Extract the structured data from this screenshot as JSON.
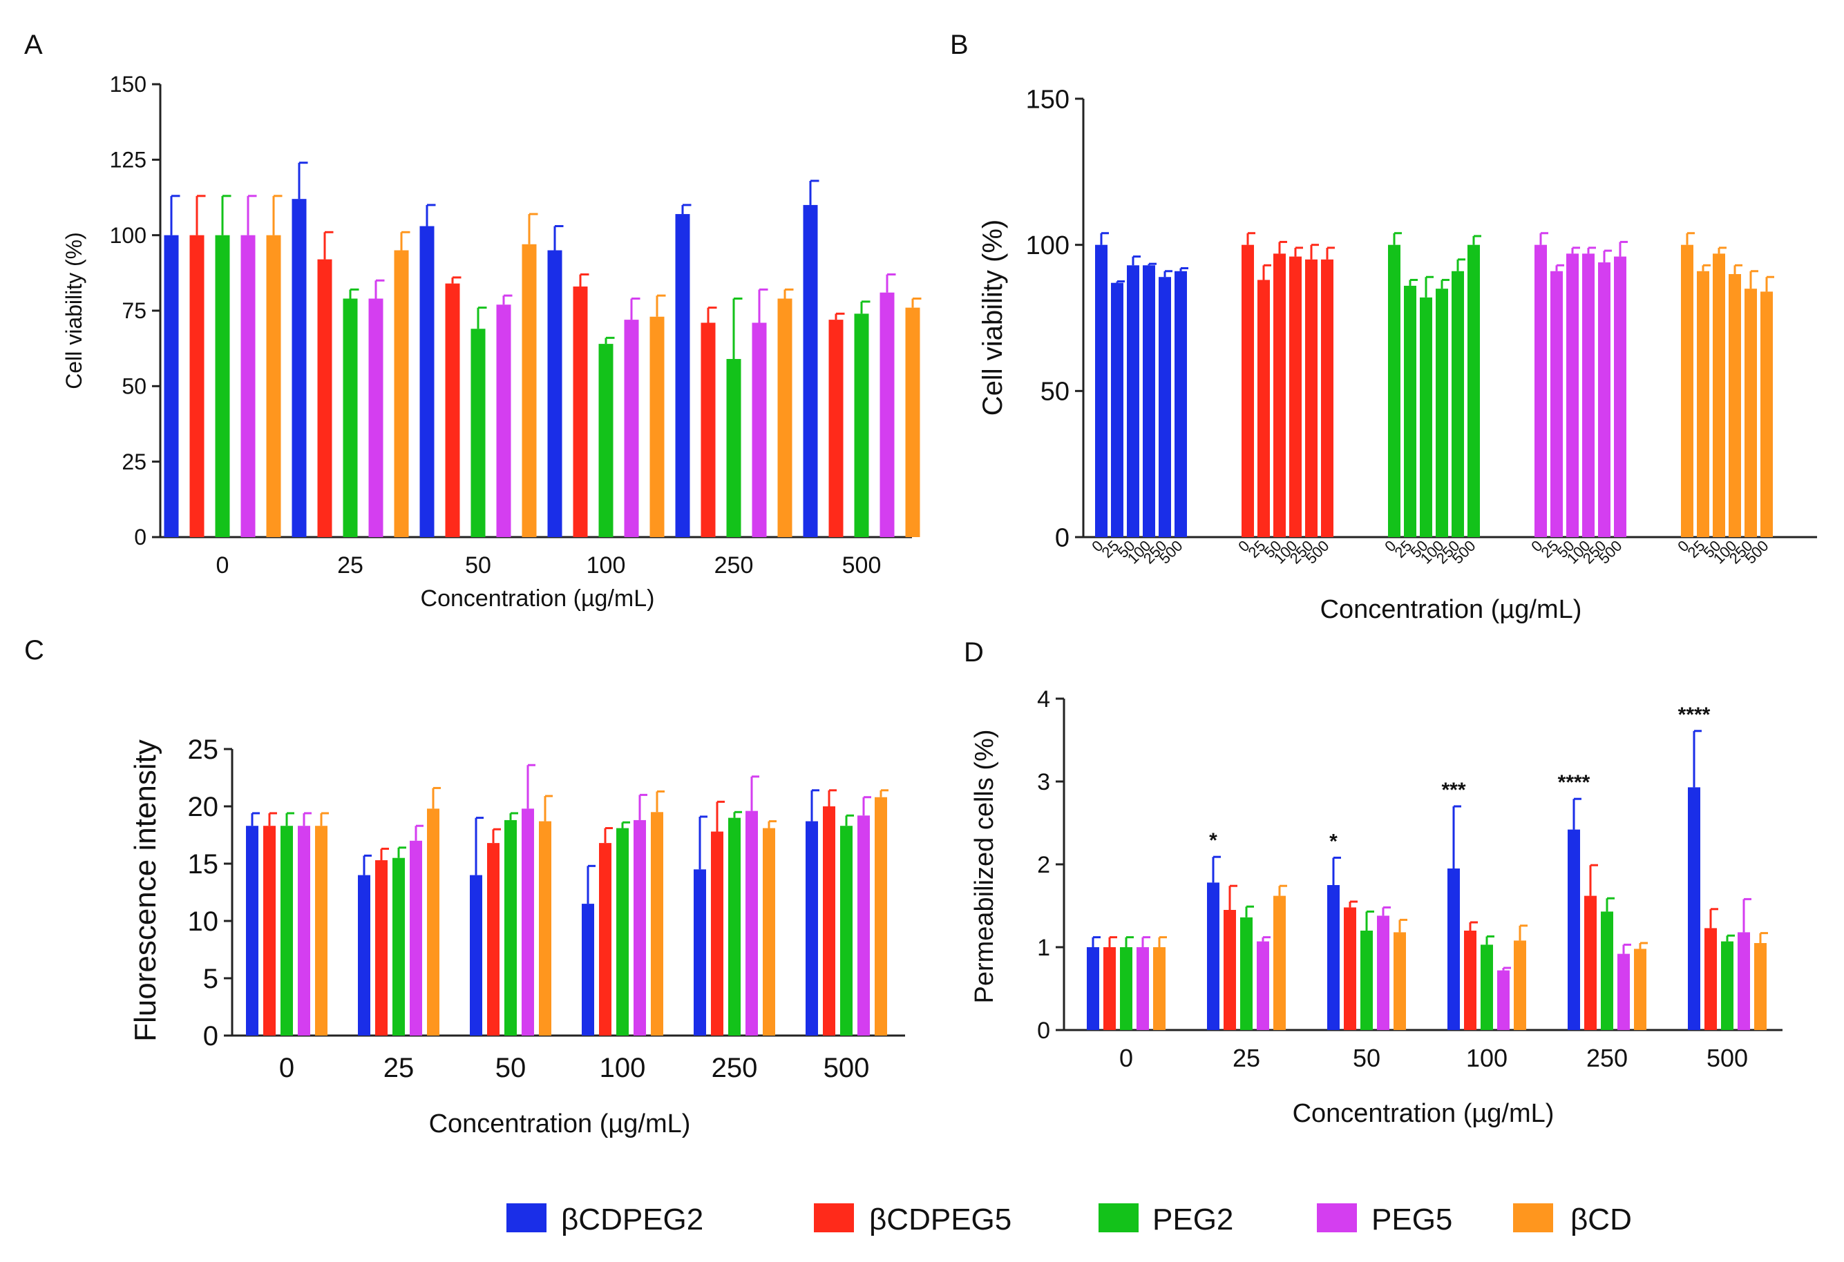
{
  "series_names": [
    "βCDPEG2",
    "βCDPEG5",
    "PEG2",
    "PEG5",
    "βCD"
  ],
  "colors": [
    "#1a2ee8",
    "#ff2a1a",
    "#13c21a",
    "#d43ef0",
    "#ff961e"
  ],
  "chart_data": [
    {
      "panel": "A",
      "type": "bar",
      "title": "",
      "xlabel": "Concentration (µg/mL)",
      "ylabel": "Cell viability (%)",
      "ylim": [
        0,
        150
      ],
      "yticks": [
        0,
        25,
        50,
        75,
        100,
        125,
        150
      ],
      "categories": [
        "0",
        "25",
        "50",
        "100",
        "250",
        "500"
      ],
      "series": [
        {
          "name": "βCDPEG2",
          "values": [
            100,
            112,
            103,
            95,
            107,
            110
          ],
          "errors": [
            13,
            12,
            7,
            8,
            3,
            8
          ]
        },
        {
          "name": "βCDPEG5",
          "values": [
            100,
            92,
            84,
            83,
            71,
            72
          ],
          "errors": [
            13,
            9,
            2,
            4,
            5,
            2
          ]
        },
        {
          "name": "PEG2",
          "values": [
            100,
            79,
            69,
            64,
            59,
            74
          ],
          "errors": [
            13,
            3,
            7,
            2,
            20,
            4
          ]
        },
        {
          "name": "PEG5",
          "values": [
            100,
            79,
            77,
            72,
            71,
            81
          ],
          "errors": [
            13,
            6,
            3,
            7,
            11,
            6
          ]
        },
        {
          "name": "βCD",
          "values": [
            100,
            95,
            97,
            73,
            79,
            76
          ],
          "errors": [
            13,
            6,
            10,
            7,
            3,
            3
          ]
        }
      ]
    },
    {
      "panel": "B",
      "type": "bar",
      "title": "",
      "xlabel": "Concentration  (µg/mL)",
      "ylabel": "Cell viability (%)",
      "ylim": [
        0,
        150
      ],
      "yticks": [
        0,
        50,
        100,
        150
      ],
      "categories": [
        "0",
        "25",
        "50",
        "100",
        "250",
        "500"
      ],
      "series": [
        {
          "name": "βCDPEG2",
          "values": [
            100,
            87,
            93,
            93,
            89,
            91
          ],
          "errors": [
            4,
            0.5,
            3,
            0.5,
            2,
            1
          ]
        },
        {
          "name": "βCDPEG5",
          "values": [
            100,
            88,
            97,
            96,
            95,
            95
          ],
          "errors": [
            4,
            5,
            4,
            3,
            5,
            4
          ]
        },
        {
          "name": "PEG2",
          "values": [
            100,
            86,
            82,
            85,
            91,
            100
          ],
          "errors": [
            4,
            2,
            7,
            3,
            4,
            3
          ]
        },
        {
          "name": "PEG5",
          "values": [
            100,
            91,
            97,
            97,
            94,
            96
          ],
          "errors": [
            4,
            2,
            2,
            2,
            4,
            5
          ]
        },
        {
          "name": "βCD",
          "values": [
            100,
            91,
            97,
            90,
            85,
            84
          ],
          "errors": [
            4,
            2,
            2,
            3,
            6,
            5
          ]
        }
      ]
    },
    {
      "panel": "C",
      "type": "bar",
      "title": "",
      "xlabel": "Concentration  (µg/mL)",
      "ylabel": "Fluorescence intensity",
      "ylim": [
        0,
        25
      ],
      "yticks": [
        0,
        5,
        10,
        15,
        20,
        25
      ],
      "categories": [
        "0",
        "25",
        "50",
        "100",
        "250",
        "500"
      ],
      "series": [
        {
          "name": "βCDPEG2",
          "values": [
            18.3,
            14.0,
            14.0,
            11.5,
            14.5,
            18.7
          ],
          "errors": [
            1.1,
            1.7,
            5.0,
            3.3,
            4.6,
            2.7
          ]
        },
        {
          "name": "βCDPEG5",
          "values": [
            18.3,
            15.3,
            16.8,
            16.8,
            17.8,
            20.0
          ],
          "errors": [
            1.1,
            1.0,
            1.2,
            1.3,
            2.6,
            1.4
          ]
        },
        {
          "name": "PEG2",
          "values": [
            18.3,
            15.5,
            18.8,
            18.1,
            19.0,
            18.3
          ],
          "errors": [
            1.1,
            0.9,
            0.6,
            0.5,
            0.5,
            0.9
          ]
        },
        {
          "name": "PEG5",
          "values": [
            18.3,
            17.0,
            19.8,
            18.8,
            19.6,
            19.2
          ],
          "errors": [
            1.1,
            1.3,
            3.8,
            2.2,
            3.0,
            1.6
          ]
        },
        {
          "name": "βCD",
          "values": [
            18.3,
            19.8,
            18.7,
            19.5,
            18.1,
            20.8
          ],
          "errors": [
            1.1,
            1.8,
            2.2,
            1.8,
            0.6,
            0.6
          ]
        }
      ]
    },
    {
      "panel": "D",
      "type": "bar",
      "title": "",
      "xlabel": "Concentration  (µg/mL)",
      "ylabel": "Permeabilized cells (%)",
      "ylim": [
        0,
        4
      ],
      "yticks": [
        0,
        1,
        2,
        3,
        4
      ],
      "categories": [
        "0",
        "25",
        "50",
        "100",
        "250",
        "500"
      ],
      "annotations": [
        "",
        "*",
        "*",
        "***",
        "****",
        "****"
      ],
      "series": [
        {
          "name": "βCDPEG2",
          "values": [
            1.0,
            1.78,
            1.75,
            1.95,
            2.42,
            2.93
          ],
          "errors": [
            0.12,
            0.31,
            0.33,
            0.75,
            0.37,
            0.68
          ]
        },
        {
          "name": "βCDPEG5",
          "values": [
            1.0,
            1.45,
            1.48,
            1.2,
            1.62,
            1.23
          ],
          "errors": [
            0.12,
            0.29,
            0.07,
            0.1,
            0.37,
            0.23
          ]
        },
        {
          "name": "PEG2",
          "values": [
            1.0,
            1.36,
            1.2,
            1.03,
            1.43,
            1.07
          ],
          "errors": [
            0.12,
            0.13,
            0.23,
            0.1,
            0.16,
            0.07
          ]
        },
        {
          "name": "PEG5",
          "values": [
            1.0,
            1.07,
            1.38,
            0.72,
            0.92,
            1.18
          ],
          "errors": [
            0.12,
            0.05,
            0.1,
            0.03,
            0.11,
            0.4
          ]
        },
        {
          "name": "βCD",
          "values": [
            1.0,
            1.62,
            1.18,
            1.08,
            0.98,
            1.05
          ],
          "errors": [
            0.12,
            0.12,
            0.15,
            0.18,
            0.07,
            0.12
          ]
        }
      ]
    }
  ]
}
